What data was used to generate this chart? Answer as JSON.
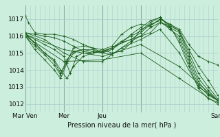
{
  "bg_color": "#cceedd",
  "plot_bg": "#cceedd",
  "grid_color": "#aacccc",
  "line_color": "#1a5c1a",
  "marker_color": "#1a5c1a",
  "xlabel": "Pression niveau de la mer( hPa )",
  "ylim": [
    1011.5,
    1017.8
  ],
  "xlim": [
    0,
    120
  ],
  "yticks": [
    1012,
    1013,
    1014,
    1015,
    1016,
    1017
  ],
  "xtick_positions": [
    0,
    24,
    48,
    72,
    120
  ],
  "xtick_labels": [
    "Mar Ven",
    "Mer",
    "Jeu",
    "",
    "Sam"
  ],
  "vline_positions": [
    0,
    24,
    48,
    72,
    120
  ],
  "series": [
    [
      0,
      1017.2,
      2,
      1016.8,
      6,
      1016.2,
      12,
      1016.1,
      18,
      1016.1,
      24,
      1016.0,
      30,
      1015.8,
      36,
      1015.5,
      42,
      1015.3,
      48,
      1015.2,
      54,
      1015.4,
      60,
      1016.1,
      66,
      1016.5,
      72,
      1016.7,
      78,
      1016.6,
      84,
      1017.0,
      90,
      1016.7,
      96,
      1016.4,
      102,
      1015.5,
      108,
      1014.8,
      114,
      1014.5,
      120,
      1014.3
    ],
    [
      0,
      1016.2,
      6,
      1016.1,
      12,
      1016.0,
      18,
      1015.9,
      24,
      1015.7,
      30,
      1015.4,
      36,
      1015.1,
      42,
      1015.0,
      48,
      1015.1,
      54,
      1015.3,
      60,
      1015.6,
      66,
      1015.8,
      72,
      1016.0,
      78,
      1016.2,
      84,
      1016.8,
      90,
      1016.6,
      96,
      1016.3,
      102,
      1015.2,
      108,
      1014.2,
      114,
      1013.4,
      120,
      1012.5
    ],
    [
      0,
      1016.1,
      6,
      1015.8,
      12,
      1015.5,
      18,
      1015.2,
      24,
      1014.8,
      28,
      1013.8,
      32,
      1014.8,
      36,
      1015.0,
      42,
      1015.0,
      48,
      1015.2,
      54,
      1015.0,
      60,
      1015.1,
      66,
      1015.6,
      72,
      1016.4,
      78,
      1016.6,
      84,
      1017.0,
      90,
      1016.7,
      96,
      1016.3,
      102,
      1015.0,
      108,
      1013.8,
      114,
      1013.0,
      120,
      1012.3
    ],
    [
      0,
      1016.1,
      6,
      1015.6,
      12,
      1015.0,
      18,
      1014.5,
      22,
      1013.8,
      26,
      1014.6,
      30,
      1015.1,
      36,
      1015.2,
      42,
      1015.2,
      48,
      1015.0,
      54,
      1014.9,
      60,
      1015.3,
      66,
      1015.7,
      72,
      1016.0,
      78,
      1016.5,
      84,
      1016.8,
      90,
      1016.5,
      96,
      1016.2,
      102,
      1014.8,
      108,
      1013.5,
      114,
      1012.8,
      120,
      1012.2
    ],
    [
      0,
      1016.0,
      6,
      1015.4,
      12,
      1014.9,
      18,
      1014.3,
      22,
      1013.7,
      26,
      1014.5,
      30,
      1015.3,
      36,
      1015.4,
      42,
      1015.3,
      48,
      1015.0,
      54,
      1015.2,
      60,
      1015.6,
      66,
      1015.8,
      72,
      1016.2,
      78,
      1016.7,
      84,
      1016.9,
      90,
      1016.4,
      96,
      1016.0,
      102,
      1014.6,
      108,
      1013.3,
      114,
      1012.6,
      120,
      1012.2
    ],
    [
      0,
      1016.0,
      6,
      1015.2,
      12,
      1014.6,
      18,
      1014.0,
      22,
      1013.5,
      26,
      1014.4,
      30,
      1015.0,
      36,
      1015.2,
      42,
      1015.1,
      48,
      1015.0,
      54,
      1015.3,
      60,
      1015.7,
      66,
      1016.0,
      72,
      1016.3,
      78,
      1016.8,
      84,
      1017.1,
      90,
      1016.5,
      96,
      1015.8,
      102,
      1014.4,
      108,
      1013.1,
      114,
      1012.5,
      120,
      1012.2
    ],
    [
      0,
      1016.2,
      6,
      1015.5,
      12,
      1015.0,
      18,
      1014.6,
      22,
      1014.0,
      26,
      1013.5,
      30,
      1014.2,
      36,
      1014.8,
      42,
      1015.0,
      48,
      1015.1,
      54,
      1015.3,
      60,
      1015.6,
      66,
      1016.1,
      72,
      1016.5,
      78,
      1016.9,
      84,
      1017.1,
      90,
      1016.6,
      96,
      1015.6,
      102,
      1014.2,
      108,
      1012.9,
      114,
      1012.3,
      120,
      1012.1
    ],
    [
      0,
      1016.2,
      12,
      1015.8,
      24,
      1015.0,
      36,
      1014.5,
      48,
      1014.5,
      60,
      1015.3,
      72,
      1015.8,
      84,
      1016.4,
      96,
      1015.0,
      108,
      1013.0,
      120,
      1012.2
    ],
    [
      0,
      1016.1,
      24,
      1015.2,
      48,
      1014.8,
      72,
      1015.5,
      96,
      1014.2,
      120,
      1012.2
    ],
    [
      0,
      1016.0,
      24,
      1014.5,
      48,
      1014.6,
      72,
      1015.0,
      96,
      1013.5,
      120,
      1012.0
    ]
  ]
}
